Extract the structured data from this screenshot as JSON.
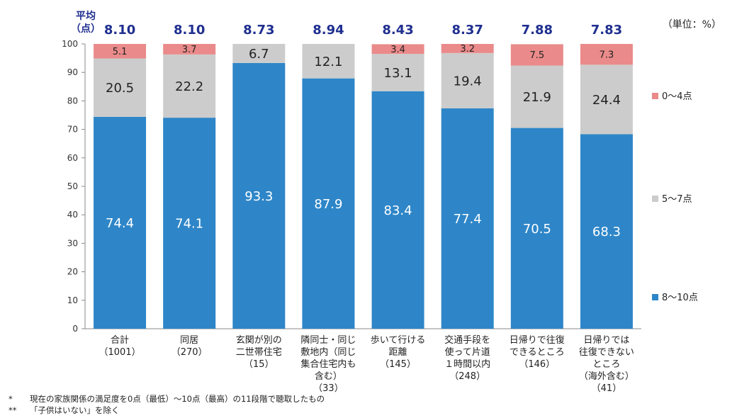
{
  "avg_label_line1": "平均",
  "avg_label_line2": "（点）",
  "unit_label": "（単位：%）",
  "footnotes": [
    {
      "mark": "*",
      "text": "現在の家族関係の満足度を0点（最低）〜10点（最高）の11段階で聴取したもの"
    },
    {
      "mark": "**",
      "text": "「子供はいない」を除く"
    }
  ],
  "colors": {
    "high": "#2e86c8",
    "mid": "#cccccc",
    "low": "#ea8a8a",
    "avg": "#1f2f8f"
  },
  "chart_data": {
    "type": "bar",
    "stacked": true,
    "ylim": [
      0,
      100
    ],
    "yticks": [
      0,
      10,
      20,
      30,
      40,
      50,
      60,
      70,
      80,
      90,
      100
    ],
    "categories": [
      [
        "合計",
        "（1001）"
      ],
      [
        "同居",
        "（270）"
      ],
      [
        "玄関が別の",
        "二世帯住宅",
        "（15）"
      ],
      [
        "隣同士・同じ",
        "敷地内（同じ",
        "集合住宅内も",
        "含む）",
        "（33）"
      ],
      [
        "歩いて行ける",
        "距離",
        "（145）"
      ],
      [
        "交通手段を",
        "使って片道",
        "１時間以内",
        "（248）"
      ],
      [
        "日帰りで往復",
        "できるところ",
        "（146）"
      ],
      [
        "日帰りでは",
        "往復できない",
        "ところ",
        "（海外含む）",
        "（41）"
      ]
    ],
    "averages": [
      "8.10",
      "8.10",
      "8.73",
      "8.94",
      "8.43",
      "8.37",
      "7.88",
      "7.83"
    ],
    "series": [
      {
        "name": "8〜10点",
        "color_key": "high",
        "values": [
          74.4,
          74.1,
          93.3,
          87.9,
          83.4,
          77.4,
          70.5,
          68.3
        ]
      },
      {
        "name": "5〜7点",
        "color_key": "mid",
        "values": [
          20.5,
          22.2,
          6.7,
          12.1,
          13.1,
          19.4,
          21.9,
          24.4
        ]
      },
      {
        "name": "0〜4点",
        "color_key": "low",
        "values": [
          5.1,
          3.7,
          null,
          null,
          3.4,
          3.2,
          7.5,
          7.3
        ]
      }
    ]
  }
}
